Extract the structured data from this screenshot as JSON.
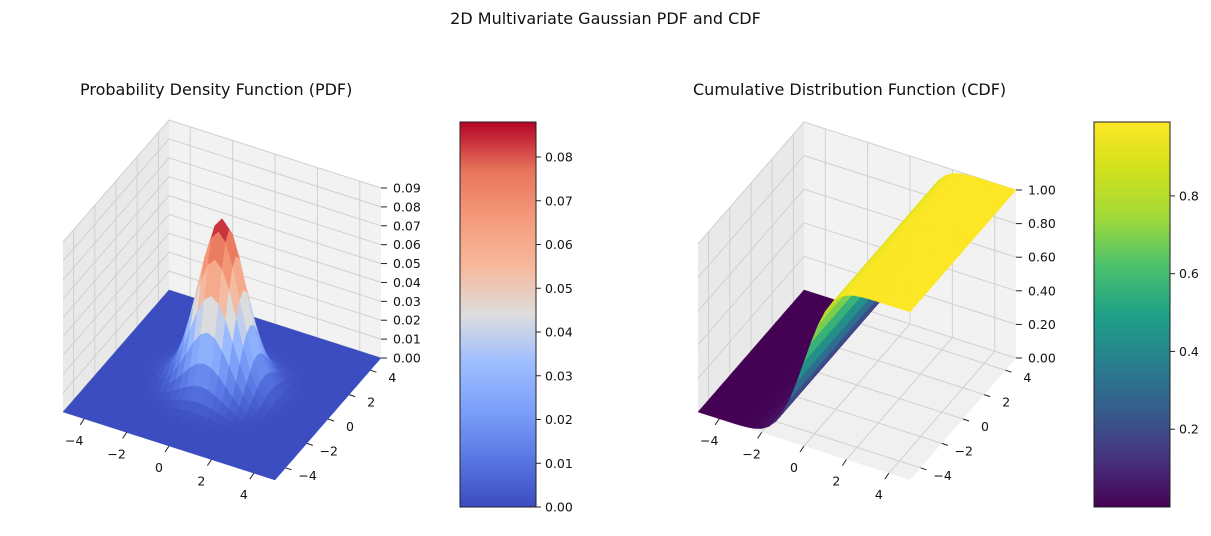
{
  "figure": {
    "suptitle": "2D Multivariate Gaussian PDF and CDF"
  },
  "chart_data": [
    {
      "type": "surface3d",
      "title": "Probability Density Function (PDF)",
      "function": "bivariate normal PDF, mean [0,0], identity-like covariance",
      "x_range": [
        -5,
        5
      ],
      "y_range": [
        -5,
        5
      ],
      "x_ticks": [
        "−4",
        "−2",
        "0",
        "2",
        "4"
      ],
      "y_ticks": [
        "−4",
        "−2",
        "0",
        "2",
        "4"
      ],
      "z_ticks": [
        "0.00",
        "0.01",
        "0.02",
        "0.03",
        "0.04",
        "0.05",
        "0.06",
        "0.07",
        "0.08",
        "0.09"
      ],
      "z_range": [
        0,
        0.09
      ],
      "peak_value": 0.088,
      "colormap": "coolwarm",
      "colorbar": {
        "range": [
          0,
          0.088
        ],
        "ticks": [
          "0.00",
          "0.01",
          "0.02",
          "0.03",
          "0.04",
          "0.05",
          "0.06",
          "0.07",
          "0.08"
        ]
      },
      "grid": true
    },
    {
      "type": "surface3d",
      "title": "Cumulative Distribution Function (CDF)",
      "function": "CDF rising from 0 to 1 along x (standard normal)",
      "x_range": [
        -5,
        5
      ],
      "y_range": [
        -5,
        5
      ],
      "x_ticks": [
        "−4",
        "−2",
        "0",
        "2",
        "4"
      ],
      "y_ticks": [
        "−4",
        "−2",
        "0",
        "2",
        "4"
      ],
      "z_ticks": [
        "0.00",
        "0.20",
        "0.40",
        "0.60",
        "0.80",
        "1.00"
      ],
      "z_range": [
        0,
        1
      ],
      "colormap": "viridis",
      "colorbar": {
        "range": [
          0.0,
          0.99
        ],
        "ticks": [
          "0.2",
          "0.4",
          "0.6",
          "0.8"
        ]
      },
      "grid": true
    }
  ],
  "colors": {
    "pane_back": "#f2f2f2",
    "pane_side": "#e6e6e6",
    "grid": "#cfcfcf"
  }
}
